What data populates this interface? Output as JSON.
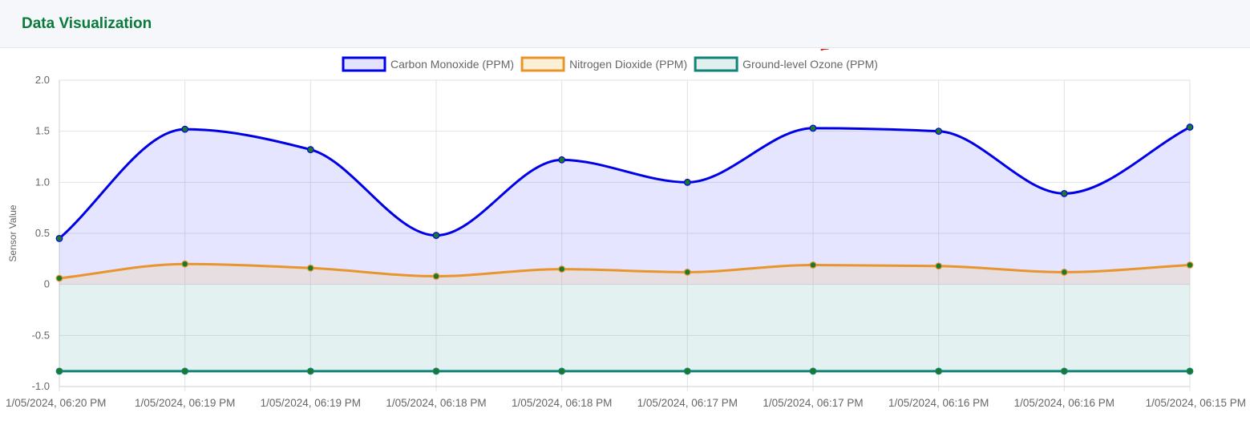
{
  "header": {
    "title": "Data Visualization"
  },
  "annotation": {
    "arrow_color": "#ee1111"
  },
  "chart_data": {
    "type": "line",
    "title": "",
    "xlabel": "",
    "ylabel": "Sensor Value",
    "ylim": [
      -1.0,
      2.0
    ],
    "yticks": [
      "2.0",
      "1.5",
      "1.0",
      "0.5",
      "0",
      "-0.5",
      "-1.0"
    ],
    "ytick_values": [
      2.0,
      1.5,
      1.0,
      0.5,
      0,
      -0.5,
      -1.0
    ],
    "grid": true,
    "legend_position": "top-center",
    "categories": [
      "1/05/2024, 06:20 PM",
      "1/05/2024, 06:19 PM",
      "1/05/2024, 06:19 PM",
      "1/05/2024, 06:18 PM",
      "1/05/2024, 06:18 PM",
      "1/05/2024, 06:17 PM",
      "1/05/2024, 06:17 PM",
      "1/05/2024, 06:16 PM",
      "1/05/2024, 06:16 PM",
      "1/05/2024, 06:15 PM"
    ],
    "series": [
      {
        "name": "Carbon Monoxide (PPM)",
        "values": [
          0.45,
          1.52,
          1.32,
          0.48,
          1.22,
          1.0,
          1.53,
          1.5,
          0.89,
          1.54
        ],
        "color": "#0000e6",
        "fill": "rgba(110,110,255,0.18)",
        "legend_fill": "#e3e3ff"
      },
      {
        "name": "Nitrogen Dioxide (PPM)",
        "values": [
          0.06,
          0.2,
          0.16,
          0.08,
          0.15,
          0.12,
          0.19,
          0.18,
          0.12,
          0.19
        ],
        "color": "#e8952e",
        "fill": "rgba(240,200,120,0.22)",
        "legend_fill": "#fbefd6"
      },
      {
        "name": "Ground-level Ozone (PPM)",
        "values": [
          -0.85,
          -0.85,
          -0.85,
          -0.85,
          -0.85,
          -0.85,
          -0.85,
          -0.85,
          -0.85,
          -0.85
        ],
        "color": "#0f8378",
        "fill": "rgba(80,170,160,0.16)",
        "legend_fill": "#e0f0ee"
      }
    ],
    "point_color": "#1a7a2a"
  }
}
